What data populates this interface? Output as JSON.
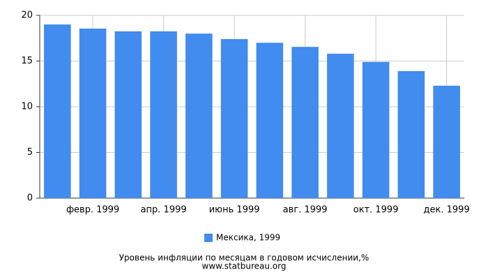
{
  "chart_data": {
    "type": "bar",
    "title": "Уровень инфляции по месяцам в годовом исчислении,%",
    "source": "www.statbureau.org",
    "categories": [
      null,
      "февр. 1999",
      null,
      "апр. 1999",
      null,
      "июнь 1999",
      null,
      "авг. 1999",
      null,
      "окт. 1999",
      null,
      "дек. 1999"
    ],
    "series": [
      {
        "name": "Мексика, 1999",
        "color": "#428bef",
        "values": [
          19.0,
          18.55,
          18.25,
          18.25,
          18.0,
          17.4,
          17.0,
          16.55,
          15.8,
          14.9,
          13.9,
          12.3
        ]
      }
    ],
    "ylim": [
      0,
      20
    ],
    "yticks": [
      0,
      5,
      10,
      15,
      20
    ],
    "grid": true,
    "legend": "bottom"
  }
}
